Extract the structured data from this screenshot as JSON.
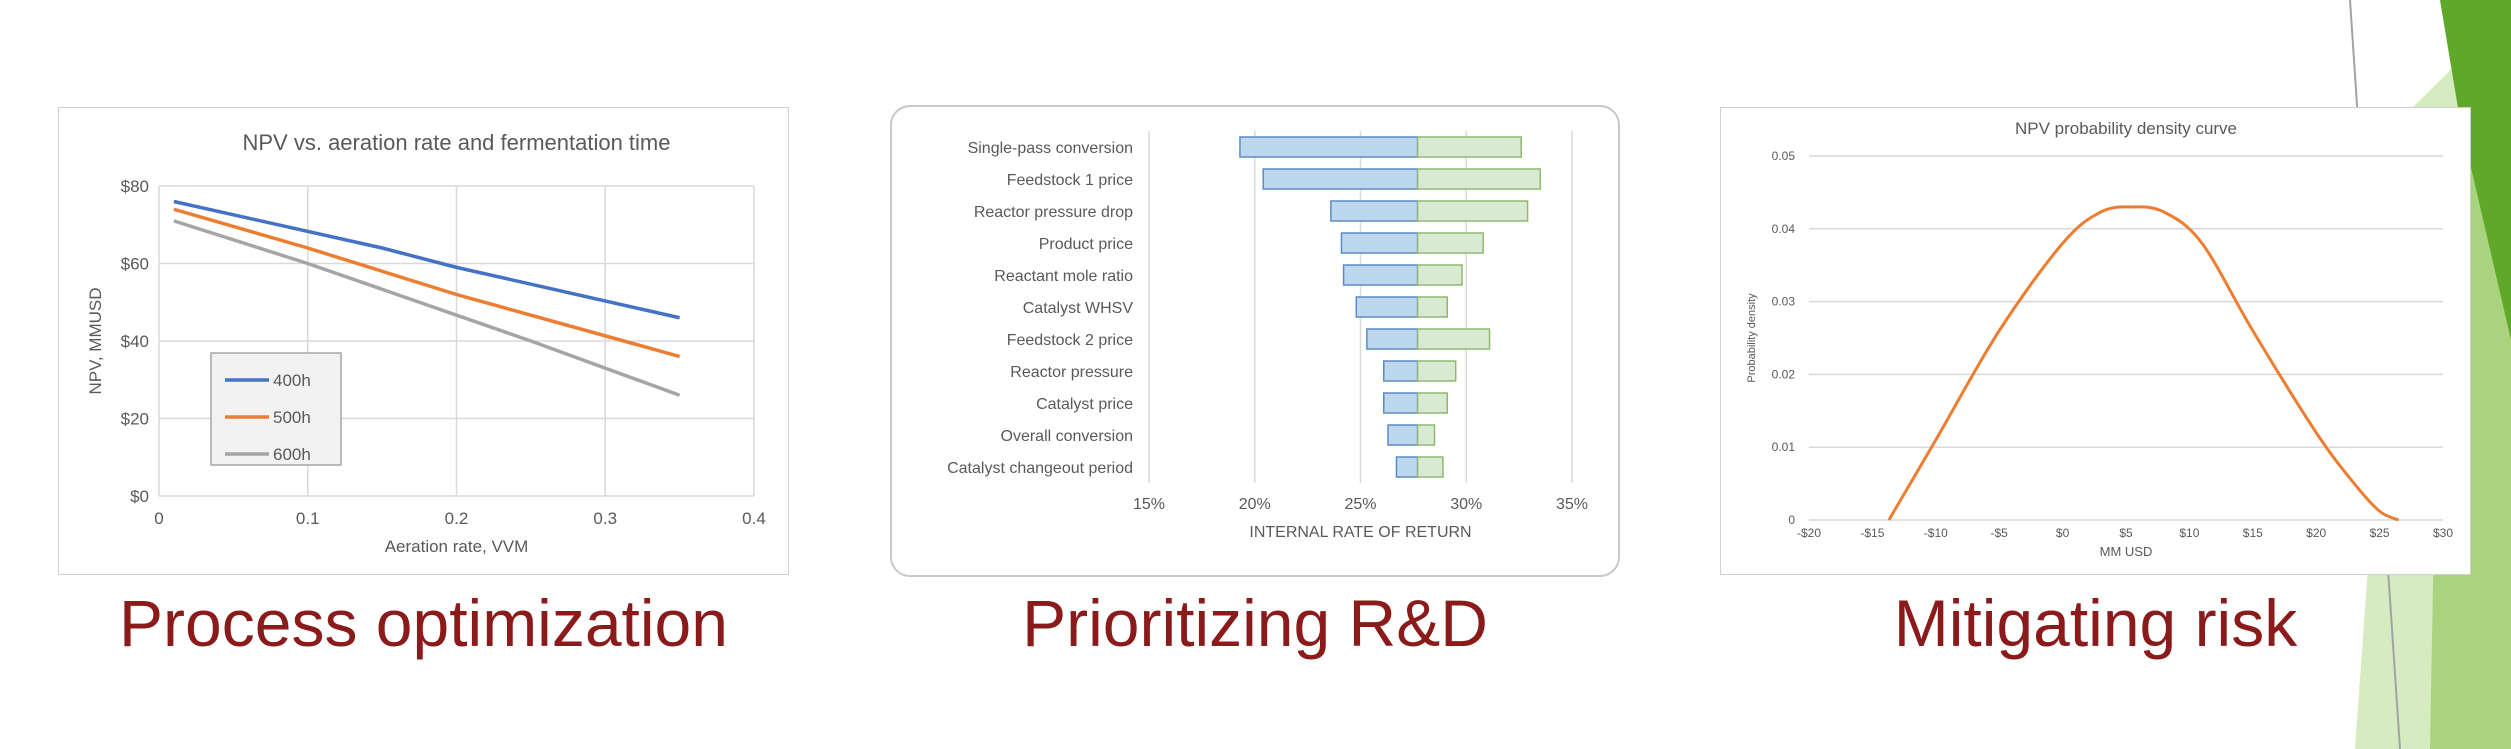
{
  "theme": {
    "accent_dark": "#5fa82a",
    "accent_light": "#cfe8b4",
    "caption_color": "#8b1a1a"
  },
  "captions": [
    "Process optimization",
    "Prioritizing R&D",
    "Mitigating risk"
  ],
  "chart_data": [
    {
      "type": "line",
      "title": "NPV vs. aeration rate and fermentation time",
      "xlabel": "Aeration rate, VVM",
      "ylabel": "NPV, MMUSD",
      "xlim": [
        0,
        0.4
      ],
      "ylim": [
        0,
        80
      ],
      "x_ticks": [
        "0",
        "0.1",
        "0.2",
        "0.3",
        "0.4"
      ],
      "y_ticks": [
        "$0",
        "$20",
        "$40",
        "$60",
        "$80"
      ],
      "grid": true,
      "legend_position": "bottom-left",
      "series": [
        {
          "name": "400h",
          "color": "#4472c4",
          "points": [
            [
              0.01,
              76
            ],
            [
              0.15,
              64
            ],
            [
              0.2,
              59
            ],
            [
              0.35,
              46
            ]
          ]
        },
        {
          "name": "500h",
          "color": "#ed7d31",
          "points": [
            [
              0.01,
              74
            ],
            [
              0.1,
              64
            ],
            [
              0.2,
              52
            ],
            [
              0.35,
              36
            ]
          ]
        },
        {
          "name": "600h",
          "color": "#a5a5a5",
          "points": [
            [
              0.01,
              71
            ],
            [
              0.1,
              60
            ],
            [
              0.25,
              40
            ],
            [
              0.35,
              26
            ]
          ]
        }
      ]
    },
    {
      "type": "bar",
      "orientation": "horizontal",
      "subtype": "tornado",
      "xlabel": "INTERNAL RATE OF RETURN",
      "base": 27.7,
      "xlim": [
        15,
        35
      ],
      "x_ticks": [
        "15%",
        "20%",
        "25%",
        "30%",
        "35%"
      ],
      "low_color": "#bdd7ee",
      "high_color": "#d9ead3",
      "categories": [
        "Single-pass conversion",
        "Feedstock 1 price",
        "Reactor pressure drop",
        "Product price",
        "Reactant mole ratio",
        "Catalyst WHSV",
        "Feedstock 2 price",
        "Reactor pressure",
        "Catalyst price",
        "Overall conversion",
        "Catalyst changeout period"
      ],
      "low": [
        19.3,
        20.4,
        23.6,
        24.1,
        24.2,
        24.8,
        25.3,
        26.1,
        26.1,
        26.3,
        26.7
      ],
      "high": [
        32.6,
        33.5,
        32.9,
        30.8,
        29.8,
        29.1,
        31.1,
        29.5,
        29.1,
        28.5,
        28.9
      ]
    },
    {
      "type": "line",
      "title": "NPV probability density curve",
      "xlabel": "MM USD",
      "ylabel": "Probability density",
      "xlim": [
        -20,
        30
      ],
      "ylim": [
        0,
        0.05
      ],
      "x_ticks": [
        "-$20",
        "-$15",
        "-$10",
        "-$5",
        "$0",
        "$5",
        "$10",
        "$15",
        "$20",
        "$25",
        "$30"
      ],
      "y_ticks": [
        "0",
        "0.01",
        "0.02",
        "0.03",
        "0.04",
        "0.05"
      ],
      "grid": true,
      "series": [
        {
          "color": "#ed7d31",
          "points": [
            [
              -13.7,
              0
            ],
            [
              -10,
              0.011
            ],
            [
              -5,
              0.026
            ],
            [
              0,
              0.038
            ],
            [
              3,
              0.0423
            ],
            [
              5.5,
              0.043
            ],
            [
              8,
              0.0423
            ],
            [
              11,
              0.038
            ],
            [
              15,
              0.026
            ],
            [
              20,
              0.012
            ],
            [
              23,
              0.005
            ],
            [
              25,
              0.0012
            ],
            [
              26.5,
              0
            ]
          ]
        }
      ]
    }
  ]
}
